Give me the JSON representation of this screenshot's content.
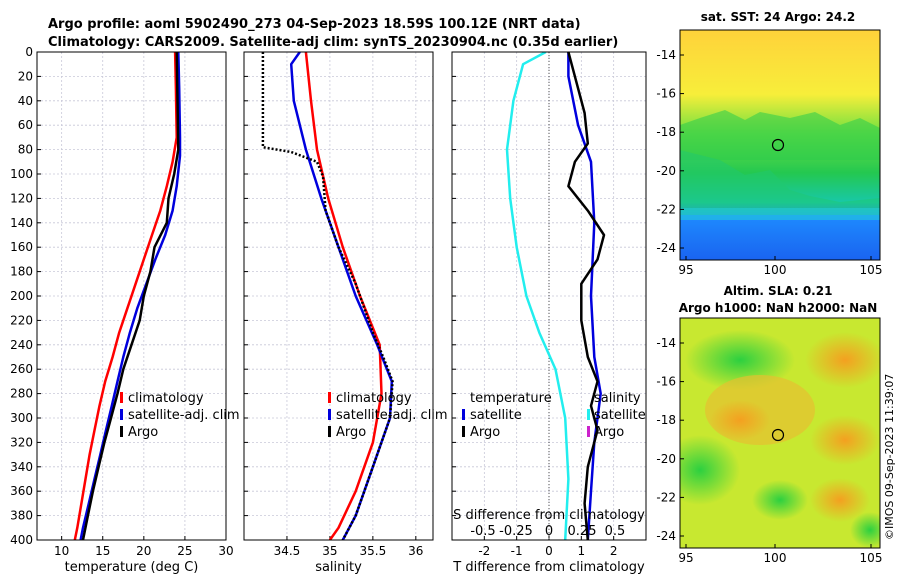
{
  "header": {
    "title1": "Argo profile: aoml 5902490_273 04-Sep-2023 18.59S 100.12E (NRT data)",
    "title2": "Climatology: CARS2009. Satellite-adj clim: synTS_20230904.nc (0.35d earlier)"
  },
  "colors": {
    "climatology": "#ff0000",
    "satellite": "#0000dd",
    "argo": "#000000",
    "t_diff": "#22eeee",
    "s_diff_argo": "#cc22cc"
  },
  "chart_data": [
    {
      "type": "line",
      "id": "temperature",
      "xlabel": "temperature (deg C)",
      "xlim": [
        7,
        30
      ],
      "ylim": [
        400,
        0
      ],
      "xticks": [
        10,
        15,
        20,
        25,
        30
      ],
      "yticks": [
        0,
        20,
        40,
        60,
        80,
        100,
        120,
        140,
        160,
        180,
        200,
        220,
        240,
        260,
        280,
        300,
        320,
        340,
        360,
        380,
        400
      ],
      "legend": [
        "climatology",
        "satellite-adj. clim",
        "Argo"
      ],
      "series": [
        {
          "name": "climatology",
          "color": "#ff0000",
          "points": [
            [
              23.8,
              0
            ],
            [
              23.9,
              30
            ],
            [
              24.0,
              70
            ],
            [
              23.5,
              90
            ],
            [
              22.8,
              110
            ],
            [
              22.0,
              130
            ],
            [
              21.0,
              150
            ],
            [
              20.0,
              170
            ],
            [
              19.0,
              190
            ],
            [
              18.0,
              210
            ],
            [
              17.0,
              230
            ],
            [
              16.2,
              250
            ],
            [
              15.3,
              270
            ],
            [
              14.6,
              290
            ],
            [
              14.0,
              310
            ],
            [
              13.4,
              330
            ],
            [
              12.9,
              350
            ],
            [
              12.4,
              370
            ],
            [
              11.9,
              390
            ],
            [
              11.6,
              400
            ]
          ]
        },
        {
          "name": "satellite-adj. clim",
          "color": "#0000dd",
          "points": [
            [
              24.2,
              0
            ],
            [
              24.3,
              30
            ],
            [
              24.4,
              70
            ],
            [
              24.4,
              85
            ],
            [
              24.0,
              110
            ],
            [
              23.5,
              130
            ],
            [
              22.6,
              150
            ],
            [
              21.4,
              170
            ],
            [
              20.3,
              190
            ],
            [
              19.2,
              210
            ],
            [
              18.3,
              230
            ],
            [
              17.5,
              250
            ],
            [
              16.8,
              270
            ],
            [
              16.1,
              290
            ],
            [
              15.4,
              310
            ],
            [
              14.7,
              330
            ],
            [
              14.0,
              350
            ],
            [
              13.3,
              370
            ],
            [
              12.6,
              390
            ],
            [
              12.3,
              400
            ]
          ]
        },
        {
          "name": "Argo",
          "color": "#000000",
          "points": [
            [
              24.0,
              0
            ],
            [
              24.1,
              40
            ],
            [
              24.2,
              80
            ],
            [
              23.7,
              100
            ],
            [
              23.0,
              120
            ],
            [
              22.8,
              140
            ],
            [
              21.3,
              160
            ],
            [
              20.8,
              180
            ],
            [
              20.0,
              200
            ],
            [
              19.5,
              220
            ],
            [
              18.5,
              240
            ],
            [
              17.5,
              260
            ],
            [
              16.8,
              280
            ],
            [
              16.0,
              300
            ],
            [
              15.2,
              320
            ],
            [
              14.5,
              340
            ],
            [
              13.8,
              360
            ],
            [
              13.2,
              380
            ],
            [
              12.6,
              400
            ]
          ]
        }
      ]
    },
    {
      "type": "line",
      "id": "salinity",
      "xlabel": "salinity",
      "xlim": [
        34.0,
        36.2
      ],
      "ylim": [
        400,
        0
      ],
      "xticks": [
        34.5,
        35,
        35.5,
        36
      ],
      "tick_labels": [
        "34.5",
        "35",
        "35.5",
        "36"
      ],
      "legend": [
        "climatology",
        "satellite-adj. clim",
        "Argo"
      ],
      "series": [
        {
          "name": "climatology",
          "color": "#ff0000",
          "points": [
            [
              34.72,
              0
            ],
            [
              34.78,
              40
            ],
            [
              34.85,
              80
            ],
            [
              34.98,
              120
            ],
            [
              35.15,
              160
            ],
            [
              35.35,
              200
            ],
            [
              35.58,
              240
            ],
            [
              35.6,
              280
            ],
            [
              35.5,
              320
            ],
            [
              35.3,
              360
            ],
            [
              35.1,
              390
            ],
            [
              35.0,
              400
            ]
          ]
        },
        {
          "name": "satellite-adj. clim",
          "color": "#0000dd",
          "points": [
            [
              34.65,
              0
            ],
            [
              34.55,
              10
            ],
            [
              34.58,
              40
            ],
            [
              34.72,
              80
            ],
            [
              34.9,
              120
            ],
            [
              35.1,
              160
            ],
            [
              35.3,
              200
            ],
            [
              35.55,
              240
            ],
            [
              35.72,
              270
            ],
            [
              35.7,
              300
            ],
            [
              35.5,
              340
            ],
            [
              35.3,
              380
            ],
            [
              35.15,
              400
            ]
          ]
        },
        {
          "name": "Argo",
          "color": "#000000",
          "dashed": true,
          "points": [
            [
              34.22,
              0
            ],
            [
              34.22,
              78
            ],
            [
              34.55,
              82
            ],
            [
              34.85,
              90
            ],
            [
              34.92,
              102
            ],
            [
              34.95,
              130
            ],
            [
              35.1,
              160
            ],
            [
              35.3,
              190
            ],
            [
              35.5,
              230
            ],
            [
              35.62,
              250
            ],
            [
              35.73,
              270
            ],
            [
              35.7,
              300
            ],
            [
              35.5,
              340
            ],
            [
              35.3,
              380
            ],
            [
              35.15,
              400
            ]
          ]
        }
      ]
    },
    {
      "type": "line",
      "id": "difference",
      "xlabel": "T difference from climatology",
      "xlim": [
        -3,
        3
      ],
      "ylim": [
        400,
        0
      ],
      "xticks": [
        -2,
        -1,
        0,
        1,
        2
      ],
      "s_axis_label": "S difference from climatology",
      "s_ticks": [
        "-0.5",
        "-0.25",
        "0",
        "0.25",
        "0.5"
      ],
      "legend_t": [
        "temperature",
        "satellite",
        "Argo"
      ],
      "legend_s": [
        "salinity",
        "satellite",
        "Argo"
      ],
      "series": [
        {
          "name": "T satellite",
          "color": "#22eeee",
          "points": [
            [
              -0.1,
              0
            ],
            [
              -0.8,
              10
            ],
            [
              -1.1,
              40
            ],
            [
              -1.3,
              80
            ],
            [
              -1.2,
              120
            ],
            [
              -1.0,
              160
            ],
            [
              -0.7,
              200
            ],
            [
              -0.3,
              230
            ],
            [
              0.2,
              260
            ],
            [
              0.5,
              300
            ],
            [
              0.6,
              350
            ],
            [
              0.5,
              400
            ]
          ]
        },
        {
          "name": "S satellite",
          "color": "#0000dd",
          "points": [
            [
              0.6,
              0
            ],
            [
              0.6,
              20
            ],
            [
              0.9,
              60
            ],
            [
              1.3,
              90
            ],
            [
              1.4,
              140
            ],
            [
              1.3,
              200
            ],
            [
              1.4,
              250
            ],
            [
              1.6,
              280
            ],
            [
              1.4,
              320
            ],
            [
              1.3,
              360
            ],
            [
              1.2,
              400
            ]
          ]
        },
        {
          "name": "S Argo",
          "color": "#000000",
          "points": [
            [
              0.6,
              0
            ],
            [
              0.8,
              20
            ],
            [
              1.1,
              50
            ],
            [
              1.2,
              75
            ],
            [
              0.8,
              90
            ],
            [
              0.6,
              110
            ],
            [
              1.2,
              130
            ],
            [
              1.7,
              150
            ],
            [
              1.5,
              170
            ],
            [
              1.0,
              190
            ],
            [
              1.0,
              220
            ],
            [
              1.2,
              250
            ],
            [
              1.5,
              270
            ],
            [
              1.3,
              290
            ],
            [
              1.5,
              310
            ],
            [
              1.2,
              340
            ],
            [
              1.1,
              370
            ],
            [
              1.2,
              400
            ]
          ]
        }
      ]
    }
  ],
  "maps": {
    "sst": {
      "title": "sat. SST: 24 Argo: 24.2",
      "xticks": [
        "95",
        "100",
        "105"
      ],
      "yticks": [
        "-14",
        "-16",
        "-18",
        "-20",
        "-22",
        "-24"
      ],
      "marker": [
        100.12,
        -18.59
      ]
    },
    "sla": {
      "title1": "Altim. SLA: 0.21",
      "title2": "Argo h1000: NaN h2000: NaN",
      "xticks": [
        "95",
        "100",
        "105"
      ],
      "yticks": [
        "-14",
        "-16",
        "-18",
        "-20",
        "-22",
        "-24"
      ],
      "marker": [
        100.12,
        -18.59
      ]
    }
  },
  "credit": "©IMOS 09-Sep-2023 11:39:07"
}
